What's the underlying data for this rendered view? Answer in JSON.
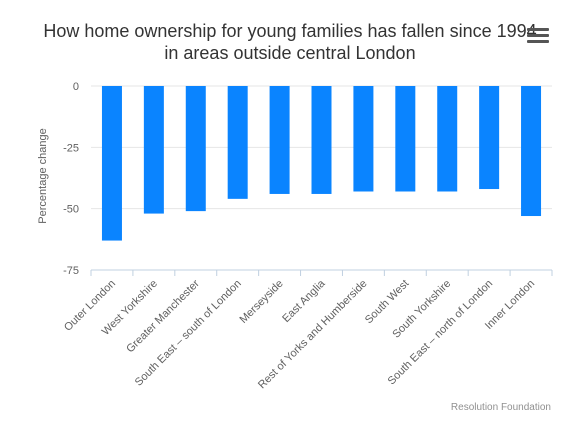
{
  "title": "How home ownership for young families has fallen since 1994 in areas outside central London",
  "credit": "Resolution Foundation",
  "menu_icon": "hamburger-menu-icon",
  "chart_data": {
    "type": "bar",
    "title": "How home ownership for young families has fallen since 1994 in areas outside central London",
    "xlabel": "",
    "ylabel": "Percentage change",
    "ylim": [
      -75,
      0
    ],
    "yticks": [
      0,
      -25,
      -50,
      -75
    ],
    "grid": true,
    "legend": "none",
    "bar_color": "#0a84ff",
    "categories": [
      "Outer London",
      "West Yorkshire",
      "Greater Manchester",
      "South East – south of London",
      "Merseyside",
      "East Anglia",
      "Rest of Yorks and Humberside",
      "South West",
      "South Yorkshire",
      "South East – north of London",
      "Inner London"
    ],
    "values": [
      -63,
      -52,
      -51,
      -46,
      -44,
      -44,
      -43,
      -43,
      -43,
      -42,
      -53
    ]
  }
}
